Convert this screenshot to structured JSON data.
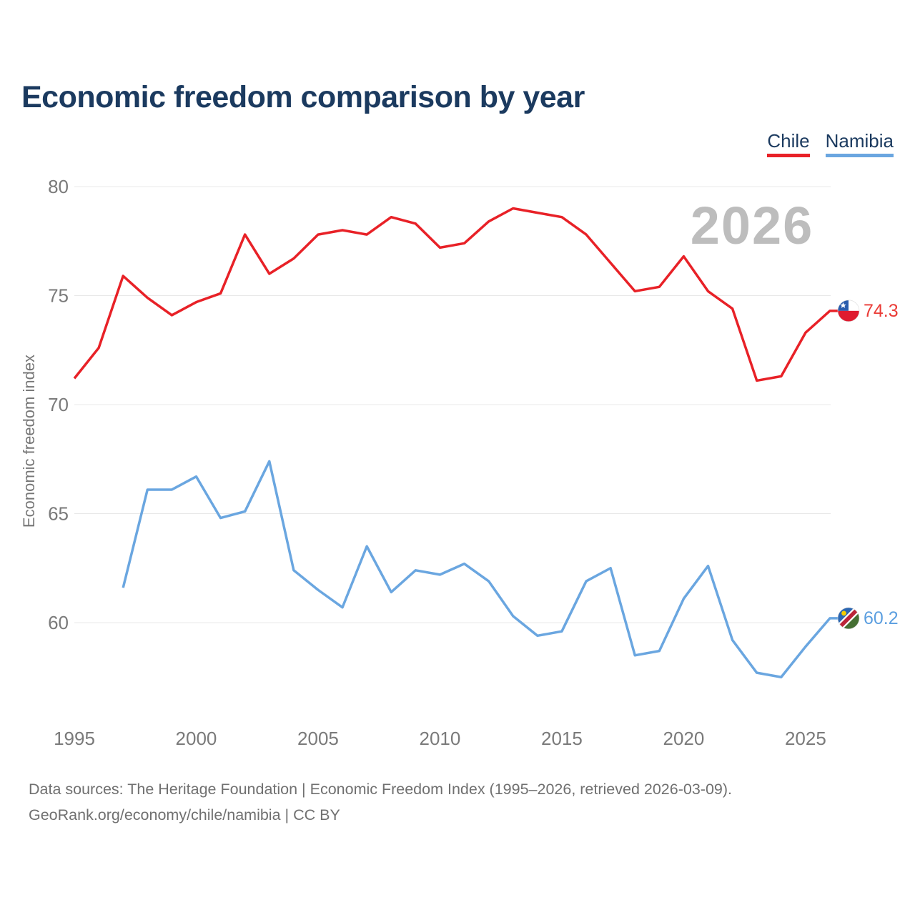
{
  "title": "Economic freedom comparison by year",
  "watermark": "2026",
  "legend": {
    "chile": {
      "label": "Chile",
      "color": "#e82127"
    },
    "namibia": {
      "label": "Namibia",
      "color": "#6aa6e0"
    }
  },
  "y_axis": {
    "label": "Economic freedom index",
    "ticks": [
      80,
      75,
      70,
      65,
      60
    ]
  },
  "x_axis": {
    "ticks": [
      1995,
      2000,
      2005,
      2010,
      2015,
      2020,
      2025
    ]
  },
  "end_labels": {
    "chile": {
      "value": "74.3",
      "color": "#ea3b36"
    },
    "namibia": {
      "value": "60.2",
      "color": "#5c9fe0"
    }
  },
  "footer": {
    "line1": "Data sources: The Heritage Foundation | Economic Freedom Index (1995–2026, retrieved 2026-03-09).",
    "line2": "GeoRank.org/economy/chile/namibia | CC BY"
  },
  "chart_data": {
    "type": "line",
    "title": "Economic freedom comparison by year",
    "xlabel": "",
    "ylabel": "Economic freedom index",
    "xlim": [
      1995,
      2026
    ],
    "ylim": [
      56.5,
      81
    ],
    "grid": "horizontal",
    "legend_position": "top-right",
    "x": [
      1995,
      1996,
      1997,
      1998,
      1999,
      2000,
      2001,
      2002,
      2003,
      2004,
      2005,
      2006,
      2007,
      2008,
      2009,
      2010,
      2011,
      2012,
      2013,
      2014,
      2015,
      2016,
      2017,
      2018,
      2019,
      2020,
      2021,
      2022,
      2023,
      2024,
      2025,
      2026
    ],
    "series": [
      {
        "name": "Chile",
        "color": "#e82127",
        "values": [
          71.2,
          72.6,
          75.9,
          74.9,
          74.1,
          74.7,
          75.1,
          77.8,
          76.0,
          76.7,
          77.8,
          78.0,
          77.8,
          78.6,
          78.3,
          77.2,
          77.4,
          78.4,
          79.0,
          78.8,
          78.6,
          77.8,
          76.5,
          75.2,
          75.4,
          76.8,
          75.2,
          74.4,
          71.1,
          71.3,
          73.3,
          74.3
        ]
      },
      {
        "name": "Namibia",
        "color": "#6aa6e0",
        "values": [
          null,
          null,
          61.6,
          66.1,
          66.1,
          66.7,
          64.8,
          65.1,
          67.4,
          62.4,
          61.5,
          60.7,
          63.5,
          61.4,
          62.4,
          62.2,
          62.7,
          61.9,
          60.3,
          59.4,
          59.6,
          61.9,
          62.5,
          58.5,
          58.7,
          61.1,
          62.6,
          59.2,
          57.7,
          57.5,
          58.9,
          60.2
        ]
      }
    ]
  }
}
